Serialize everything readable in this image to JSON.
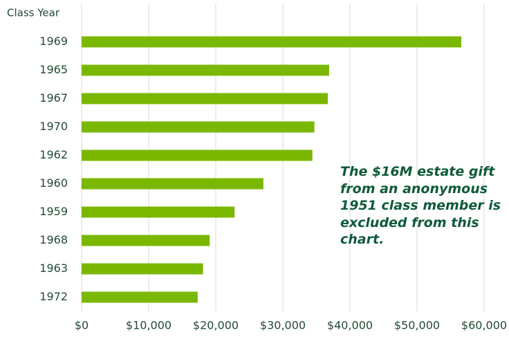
{
  "chart_data": {
    "type": "bar",
    "orientation": "horizontal",
    "y_axis_label": "Class Year",
    "annotation": "The $16M estate gift from an anonymous 1951 class member is excluded from this chart.",
    "categories": [
      "1969",
      "1965",
      "1967",
      "1970",
      "1962",
      "1960",
      "1959",
      "1968",
      "1963",
      "1972"
    ],
    "values": [
      56600,
      36900,
      36700,
      34700,
      34400,
      27100,
      22800,
      19100,
      18100,
      17300
    ],
    "color": "#7ab800",
    "xlim": [
      0,
      60000
    ],
    "xticks": [
      {
        "value": 0,
        "label": "$0"
      },
      {
        "value": 10000,
        "label": "$10,000"
      },
      {
        "value": 20000,
        "label": "$20,000"
      },
      {
        "value": 30000,
        "label": "$30,000"
      },
      {
        "value": 40000,
        "label": "$40,000"
      },
      {
        "value": 50000,
        "label": "$50,000"
      },
      {
        "value": 60000,
        "label": "$60,000"
      }
    ],
    "grid": true
  }
}
